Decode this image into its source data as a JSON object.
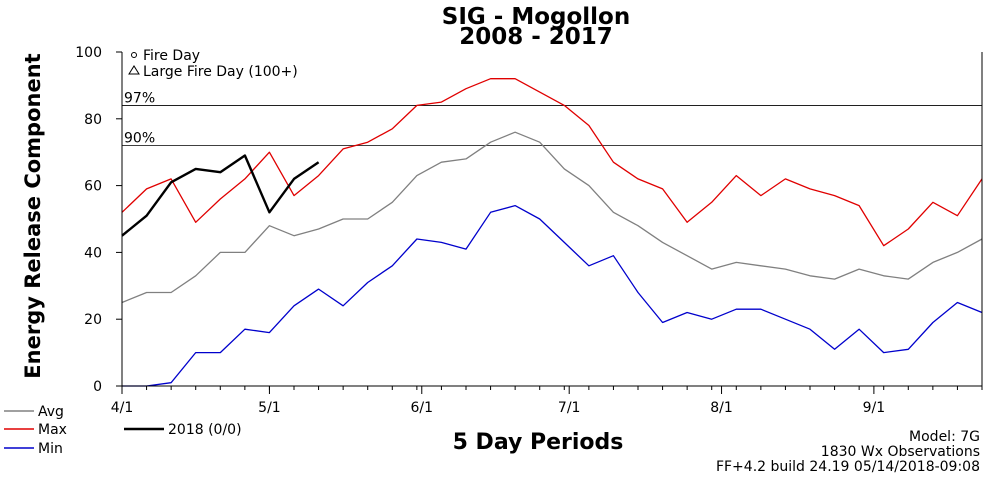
{
  "chart_data": {
    "type": "line",
    "title": "SIG - Mogollon",
    "subtitle": "2008 - 2017",
    "ylabel": "Energy Release Component",
    "xlabel": "5 Day Periods",
    "ylim": [
      0,
      100
    ],
    "yticks": [
      "0",
      "20",
      "40",
      "60",
      "80",
      "100"
    ],
    "x_period_count": 36,
    "xticks": [
      {
        "label": "4/1",
        "period": 0
      },
      {
        "label": "5/1",
        "period": 6
      },
      {
        "label": "6/1",
        "period": 12.2
      },
      {
        "label": "7/1",
        "period": 18.2
      },
      {
        "label": "8/1",
        "period": 24.4
      },
      {
        "label": "9/1",
        "period": 30.6
      }
    ],
    "reference_lines": [
      {
        "label": "97%",
        "value": 84
      },
      {
        "label": "90%",
        "value": 72
      }
    ],
    "series": [
      {
        "name": "Avg",
        "color": "#808080",
        "values": [
          25,
          28,
          28,
          33,
          40,
          40,
          48,
          45,
          47,
          50,
          50,
          55,
          63,
          67,
          68,
          73,
          76,
          73,
          65,
          60,
          52,
          48,
          43,
          39,
          35,
          37,
          36,
          35,
          33,
          32,
          35,
          33,
          32,
          37,
          40,
          44
        ]
      },
      {
        "name": "Max",
        "color": "#e00000",
        "values": [
          52,
          59,
          62,
          49,
          56,
          62,
          70,
          57,
          63,
          71,
          73,
          77,
          84,
          85,
          89,
          92,
          92,
          88,
          84,
          78,
          67,
          62,
          59,
          49,
          55,
          63,
          57,
          62,
          59,
          57,
          54,
          42,
          47,
          55,
          51,
          62
        ]
      },
      {
        "name": "Min",
        "color": "#0000cc",
        "values": [
          0,
          0,
          1,
          10,
          10,
          17,
          16,
          24,
          29,
          24,
          31,
          36,
          44,
          43,
          41,
          52,
          54,
          50,
          43,
          36,
          39,
          28,
          19,
          22,
          20,
          23,
          23,
          20,
          17,
          11,
          17,
          10,
          11,
          19,
          25,
          22
        ]
      },
      {
        "name": "2018 (0/0)",
        "color": "#000000",
        "values": [
          45,
          51,
          61,
          65,
          64,
          69,
          52,
          62,
          67
        ]
      }
    ],
    "markers_legend": [
      {
        "symbol": "circle",
        "label": "Fire Day"
      },
      {
        "symbol": "triangle",
        "label": "Large Fire Day (100+)"
      }
    ],
    "legend_position": "bottom-left",
    "grid": false
  },
  "footer": {
    "model": "Model: 7G",
    "observations": "1830 Wx Observations",
    "build": "FF+4.2 build 24.19 05/14/2018-09:08"
  }
}
